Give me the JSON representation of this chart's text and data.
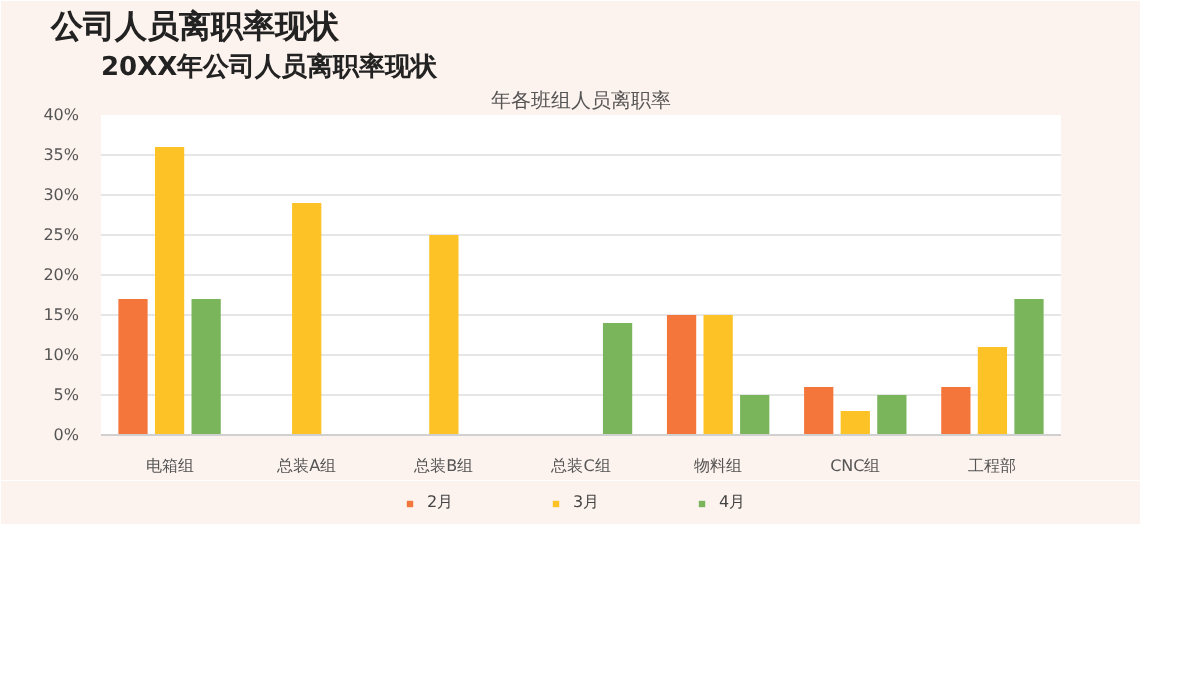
{
  "chart_data": {
    "type": "bar",
    "title": "公司人员离职率现状",
    "subtitle": "20XX年公司人员离职率现状",
    "annotations": [
      "年各班组人员离职率"
    ],
    "categories": [
      "电箱组",
      "总装A组",
      "总装B组",
      "总装C组",
      "物料组",
      "CNC组",
      "工程部"
    ],
    "series": [
      {
        "name": "2月",
        "color": "#f5763a",
        "values": [
          17,
          0,
          0,
          0,
          15,
          6,
          6
        ]
      },
      {
        "name": "3月",
        "color": "#fcc226",
        "values": [
          36,
          29,
          25,
          0,
          15,
          3,
          11
        ]
      },
      {
        "name": "4月",
        "color": "#7ab55c",
        "values": [
          17,
          0,
          0,
          14,
          5,
          5,
          17
        ]
      }
    ],
    "ylim": [
      0,
      40
    ],
    "yticks": [
      {
        "value": 0,
        "label": "0%"
      },
      {
        "value": 5,
        "label": "5%"
      },
      {
        "value": 10,
        "label": "10%"
      },
      {
        "value": 15,
        "label": "15%"
      },
      {
        "value": 20,
        "label": "20%"
      },
      {
        "value": 25,
        "label": "25%"
      },
      {
        "value": 30,
        "label": "30%"
      },
      {
        "value": 35,
        "label": "35%"
      },
      {
        "value": 40,
        "label": "40%"
      }
    ],
    "grid": "y",
    "legend": "bottom"
  }
}
